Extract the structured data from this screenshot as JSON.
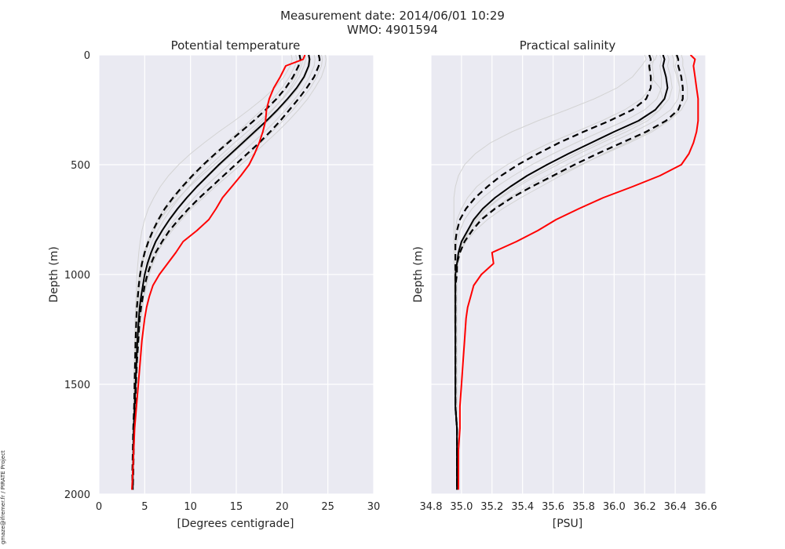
{
  "figure": {
    "suptitle_line1": "Measurement date: 2014/06/01 10:29",
    "suptitle_line2": "WMO: 4901594",
    "credit": "gmaze@ifremer.fr / PIRATE Project",
    "colors": {
      "background": "#EAEAF2",
      "grid": "#FFFFFF",
      "ensemble": "#D3D3D3",
      "mean": "#000000",
      "profile": "#FF0000"
    }
  },
  "chart_data": [
    {
      "type": "line",
      "title": "Potential temperature",
      "xlabel": "[Degrees centigrade]",
      "ylabel": "Depth (m)",
      "xlim": [
        0,
        30
      ],
      "ylim": [
        2000,
        0
      ],
      "xticks": [
        0,
        5,
        10,
        15,
        20,
        25,
        30
      ],
      "xtick_labels": [
        "0",
        "5",
        "10",
        "15",
        "20",
        "25",
        "30"
      ],
      "yticks": [
        0,
        500,
        1000,
        1500,
        2000
      ],
      "ytick_labels": [
        "0",
        "500",
        "1000",
        "1500",
        "2000"
      ],
      "grid": true,
      "depth": [
        0,
        20,
        50,
        100,
        150,
        200,
        250,
        300,
        350,
        400,
        450,
        500,
        550,
        600,
        650,
        700,
        750,
        800,
        850,
        900,
        950,
        1000,
        1050,
        1100,
        1150,
        1200,
        1300,
        1400,
        1500,
        1600,
        1700,
        1800,
        1900,
        1980
      ],
      "series": [
        {
          "name": "Mean",
          "style": "solid-black",
          "values": [
            22.9,
            23.0,
            22.9,
            22.4,
            21.6,
            20.6,
            19.5,
            18.3,
            17.0,
            15.7,
            14.4,
            13.1,
            11.9,
            10.7,
            9.6,
            8.6,
            7.7,
            6.9,
            6.2,
            5.7,
            5.3,
            5.0,
            4.8,
            4.6,
            4.45,
            4.35,
            4.2,
            4.1,
            4.0,
            3.9,
            3.8,
            3.75,
            3.7,
            3.7
          ]
        },
        {
          "name": "Mean + std",
          "style": "dashed-black",
          "values": [
            24.0,
            24.1,
            24.0,
            23.5,
            22.7,
            21.8,
            20.8,
            19.8,
            18.7,
            17.5,
            16.2,
            14.9,
            13.6,
            12.3,
            11.0,
            9.8,
            8.7,
            7.7,
            6.9,
            6.2,
            5.7,
            5.3,
            5.0,
            4.8,
            4.6,
            4.45,
            4.3,
            4.15,
            4.05,
            3.95,
            3.85,
            3.8,
            3.75,
            3.7
          ]
        },
        {
          "name": "Mean - std",
          "style": "dashed-black",
          "values": [
            21.9,
            22.0,
            21.8,
            21.2,
            20.4,
            19.4,
            18.2,
            16.9,
            15.5,
            14.1,
            12.7,
            11.4,
            10.2,
            9.1,
            8.1,
            7.2,
            6.5,
            5.9,
            5.4,
            5.0,
            4.7,
            4.5,
            4.35,
            4.25,
            4.15,
            4.1,
            4.0,
            3.95,
            3.9,
            3.85,
            3.75,
            3.7,
            3.65,
            3.65
          ]
        },
        {
          "name": "Profile",
          "style": "solid-red",
          "values": [
            22.5,
            22.3,
            20.4,
            19.8,
            19.1,
            18.6,
            18.3,
            18.2,
            17.9,
            17.5,
            17.0,
            16.4,
            15.5,
            14.5,
            13.5,
            12.8,
            12.0,
            10.7,
            9.2,
            8.4,
            7.5,
            6.6,
            5.9,
            5.5,
            5.2,
            5.0,
            4.7,
            4.5,
            4.3,
            4.1,
            3.9,
            3.8,
            3.7,
            3.6
          ]
        }
      ],
      "ensemble": [
        [
          21.5,
          21.6,
          21.4,
          20.8,
          20.0,
          19.0,
          17.8,
          16.5,
          15.2,
          13.9,
          12.6,
          11.3,
          10.1,
          9.0,
          8.0,
          7.1,
          6.4,
          5.8,
          5.3,
          4.9,
          4.6,
          4.4,
          4.25,
          4.15,
          4.05,
          4.0,
          3.95,
          3.9,
          3.85,
          3.8,
          3.75,
          3.7,
          3.65,
          3.65
        ],
        [
          22.0,
          22.1,
          21.9,
          21.4,
          20.5,
          19.5,
          18.3,
          17.0,
          15.6,
          14.2,
          12.9,
          11.6,
          10.4,
          9.3,
          8.3,
          7.4,
          6.7,
          6.0,
          5.5,
          5.1,
          4.8,
          4.55,
          4.4,
          4.3,
          4.2,
          4.1,
          4.0,
          3.95,
          3.9,
          3.85,
          3.8,
          3.75,
          3.7,
          3.7
        ],
        [
          22.5,
          22.6,
          22.4,
          21.9,
          21.1,
          20.1,
          18.9,
          17.6,
          16.2,
          14.8,
          13.5,
          12.2,
          10.9,
          9.8,
          8.8,
          7.9,
          7.1,
          6.4,
          5.8,
          5.4,
          5.0,
          4.75,
          4.55,
          4.4,
          4.3,
          4.2,
          4.1,
          4.0,
          3.95,
          3.9,
          3.85,
          3.8,
          3.75,
          3.7
        ],
        [
          23.0,
          23.1,
          23.0,
          22.5,
          21.8,
          20.8,
          19.7,
          18.5,
          17.2,
          15.9,
          14.6,
          13.3,
          12.0,
          10.8,
          9.7,
          8.7,
          7.8,
          7.0,
          6.3,
          5.8,
          5.4,
          5.05,
          4.8,
          4.6,
          4.45,
          4.35,
          4.2,
          4.1,
          4.0,
          3.9,
          3.85,
          3.8,
          3.75,
          3.7
        ],
        [
          23.5,
          23.6,
          23.5,
          23.0,
          22.3,
          21.4,
          20.4,
          19.3,
          18.1,
          16.8,
          15.5,
          14.2,
          12.9,
          11.6,
          10.4,
          9.3,
          8.3,
          7.4,
          6.6,
          6.0,
          5.5,
          5.15,
          4.9,
          4.7,
          4.55,
          4.4,
          4.25,
          4.1,
          4.0,
          3.9,
          3.85,
          3.8,
          3.75,
          3.7
        ],
        [
          24.3,
          24.4,
          24.3,
          23.8,
          23.1,
          22.2,
          21.2,
          20.1,
          18.9,
          17.7,
          16.4,
          15.1,
          13.7,
          12.4,
          11.1,
          9.9,
          8.8,
          7.8,
          7.0,
          6.3,
          5.8,
          5.4,
          5.1,
          4.85,
          4.65,
          4.5,
          4.3,
          4.15,
          4.05,
          3.95,
          3.85,
          3.8,
          3.75,
          3.7
        ],
        [
          21.0,
          21.1,
          20.9,
          20.2,
          19.2,
          17.9,
          16.4,
          14.8,
          13.1,
          11.5,
          10.0,
          8.7,
          7.6,
          6.7,
          6.0,
          5.4,
          5.0,
          4.7,
          4.5,
          4.35,
          4.25,
          4.15,
          4.1,
          4.05,
          4.0,
          3.95,
          3.9,
          3.85,
          3.8,
          3.8,
          3.75,
          3.7,
          3.65,
          3.65
        ],
        [
          22.2,
          22.3,
          22.1,
          21.6,
          20.9,
          20.0,
          19.0,
          17.9,
          16.7,
          15.4,
          14.0,
          12.6,
          11.2,
          9.9,
          8.7,
          7.6,
          6.7,
          6.0,
          5.4,
          5.0,
          4.7,
          4.5,
          4.35,
          4.25,
          4.15,
          4.1,
          4.0,
          3.95,
          3.9,
          3.85,
          3.8,
          3.75,
          3.7,
          3.7
        ],
        [
          24.7,
          24.8,
          24.7,
          24.3,
          23.6,
          22.8,
          21.8,
          20.7,
          19.5,
          18.2,
          16.9,
          15.5,
          14.1,
          12.7,
          11.4,
          10.1,
          9.0,
          8.0,
          7.1,
          6.4,
          5.9,
          5.5,
          5.2,
          4.95,
          4.75,
          4.6,
          4.4,
          4.2,
          4.1,
          4.0,
          3.9,
          3.85,
          3.8,
          3.75
        ]
      ]
    },
    {
      "type": "line",
      "title": "Practical salinity",
      "xlabel": "[PSU]",
      "ylabel": "Depth (m)",
      "xlim": [
        34.8,
        36.6
      ],
      "ylim": [
        2000,
        0
      ],
      "xticks": [
        34.8,
        35.0,
        35.2,
        35.4,
        35.6,
        35.8,
        36.0,
        36.2,
        36.4,
        36.6
      ],
      "xtick_labels": [
        "34.8",
        "35.0",
        "35.2",
        "35.4",
        "35.6",
        "35.8",
        "36.0",
        "36.2",
        "36.4",
        "36.6"
      ],
      "yticks": [
        0,
        500,
        1000,
        1500,
        2000
      ],
      "ytick_labels": [
        "0",
        "500",
        "1000",
        "1500",
        "2000"
      ],
      "grid": true,
      "depth": [
        0,
        20,
        50,
        100,
        150,
        200,
        250,
        300,
        350,
        400,
        450,
        500,
        550,
        600,
        650,
        700,
        750,
        800,
        850,
        900,
        950,
        1000,
        1050,
        1100,
        1150,
        1200,
        1300,
        1400,
        1500,
        1600,
        1700,
        1800,
        1900,
        1980
      ],
      "series": [
        {
          "name": "Mean",
          "style": "solid-black",
          "values": [
            36.32,
            36.33,
            36.32,
            36.34,
            36.35,
            36.33,
            36.27,
            36.16,
            36.0,
            35.85,
            35.7,
            35.56,
            35.43,
            35.32,
            35.22,
            35.14,
            35.08,
            35.04,
            35.0,
            34.98,
            34.97,
            34.96,
            34.96,
            34.96,
            34.96,
            34.96,
            34.96,
            34.96,
            34.96,
            34.96,
            34.97,
            34.97,
            34.97,
            34.97
          ]
        },
        {
          "name": "Mean + std",
          "style": "dashed-black",
          "values": [
            36.41,
            36.42,
            36.42,
            36.44,
            36.45,
            36.45,
            36.42,
            36.34,
            36.21,
            36.05,
            35.89,
            35.74,
            35.6,
            35.46,
            35.33,
            35.22,
            35.13,
            35.07,
            35.02,
            34.99,
            34.97,
            34.97,
            34.96,
            34.96,
            34.96,
            34.96,
            34.96,
            34.96,
            34.96,
            34.96,
            34.97,
            34.97,
            34.97,
            34.97
          ]
        },
        {
          "name": "Mean - std",
          "style": "dashed-black",
          "values": [
            36.23,
            36.24,
            36.23,
            36.24,
            36.24,
            36.21,
            36.12,
            35.97,
            35.8,
            35.64,
            35.5,
            35.37,
            35.26,
            35.17,
            35.09,
            35.03,
            34.99,
            34.97,
            34.96,
            34.96,
            34.96,
            34.96,
            34.96,
            34.96,
            34.96,
            34.96,
            34.96,
            34.96,
            34.96,
            34.96,
            34.97,
            34.97,
            34.97,
            34.97
          ]
        },
        {
          "name": "Profile",
          "style": "solid-red",
          "values": [
            36.5,
            36.53,
            36.52,
            36.53,
            36.54,
            36.55,
            36.55,
            36.55,
            36.54,
            36.52,
            36.49,
            36.44,
            36.3,
            36.12,
            35.93,
            35.77,
            35.62,
            35.5,
            35.36,
            35.2,
            35.21,
            35.13,
            35.08,
            35.06,
            35.04,
            35.03,
            35.02,
            35.01,
            35.0,
            34.99,
            34.99,
            34.98,
            34.98,
            34.98
          ]
        }
      ],
      "ensemble": [
        [
          36.2,
          36.21,
          36.18,
          36.12,
          36.02,
          35.87,
          35.69,
          35.5,
          35.33,
          35.19,
          35.09,
          35.02,
          34.98,
          34.96,
          34.95,
          34.95,
          34.95,
          34.95,
          34.95,
          34.95,
          34.95,
          34.95,
          34.95,
          34.95,
          34.95,
          34.95,
          34.96,
          34.96,
          34.96,
          34.96,
          34.97,
          34.97,
          34.97,
          34.97
        ],
        [
          36.25,
          36.26,
          36.25,
          36.26,
          36.24,
          36.18,
          36.07,
          35.92,
          35.75,
          35.58,
          35.43,
          35.3,
          35.19,
          35.1,
          35.04,
          35.0,
          34.97,
          34.96,
          34.96,
          34.96,
          34.96,
          34.96,
          34.96,
          34.96,
          34.96,
          34.96,
          34.96,
          34.96,
          34.96,
          34.96,
          34.97,
          34.97,
          34.97,
          34.97
        ],
        [
          36.3,
          36.31,
          36.3,
          36.31,
          36.31,
          36.28,
          36.2,
          36.07,
          35.91,
          35.75,
          35.6,
          35.46,
          35.34,
          35.23,
          35.14,
          35.07,
          35.02,
          34.99,
          34.97,
          34.96,
          34.96,
          34.96,
          34.96,
          34.96,
          34.96,
          34.96,
          34.96,
          34.96,
          34.96,
          34.96,
          34.97,
          34.97,
          34.97,
          34.97
        ],
        [
          36.35,
          36.36,
          36.35,
          36.37,
          36.38,
          36.36,
          36.3,
          36.19,
          36.04,
          35.89,
          35.74,
          35.6,
          35.47,
          35.35,
          35.25,
          35.16,
          35.09,
          35.04,
          35.0,
          34.98,
          34.97,
          34.96,
          34.96,
          34.96,
          34.96,
          34.96,
          34.96,
          34.96,
          34.96,
          34.96,
          34.97,
          34.97,
          34.97,
          34.97
        ],
        [
          36.4,
          36.41,
          36.4,
          36.42,
          36.43,
          36.42,
          36.37,
          36.27,
          36.13,
          35.98,
          35.83,
          35.69,
          35.56,
          35.43,
          35.31,
          35.21,
          35.12,
          35.06,
          35.01,
          34.98,
          34.97,
          34.96,
          34.96,
          34.96,
          34.96,
          34.96,
          34.96,
          34.96,
          34.96,
          34.96,
          34.97,
          34.97,
          34.97,
          34.97
        ],
        [
          36.44,
          36.45,
          36.45,
          36.47,
          36.48,
          36.48,
          36.44,
          36.36,
          36.23,
          36.08,
          35.93,
          35.79,
          35.65,
          35.52,
          35.39,
          35.27,
          35.17,
          35.09,
          35.03,
          34.99,
          34.97,
          34.96,
          34.96,
          34.96,
          34.96,
          34.96,
          34.96,
          34.96,
          34.96,
          34.96,
          34.97,
          34.97,
          34.97,
          34.97
        ],
        [
          36.28,
          36.27,
          36.22,
          36.24,
          36.3,
          36.32,
          36.3,
          36.22,
          36.08,
          35.92,
          35.77,
          35.63,
          35.49,
          35.37,
          35.26,
          35.17,
          35.1,
          35.05,
          35.01,
          34.98,
          34.97,
          34.96,
          34.96,
          34.96,
          34.96,
          34.96,
          34.96,
          34.96,
          34.96,
          34.96,
          34.97,
          34.97,
          34.97,
          34.97
        ],
        [
          36.38,
          36.39,
          36.39,
          36.41,
          36.43,
          36.44,
          36.42,
          36.36,
          36.25,
          36.1,
          35.94,
          35.78,
          35.62,
          35.47,
          35.33,
          35.21,
          35.12,
          35.06,
          35.02,
          34.99,
          34.98,
          34.97,
          34.97,
          34.97,
          34.97,
          34.97,
          34.97,
          34.97,
          34.97,
          34.97,
          34.97,
          34.97,
          34.97,
          34.97
        ]
      ]
    }
  ]
}
